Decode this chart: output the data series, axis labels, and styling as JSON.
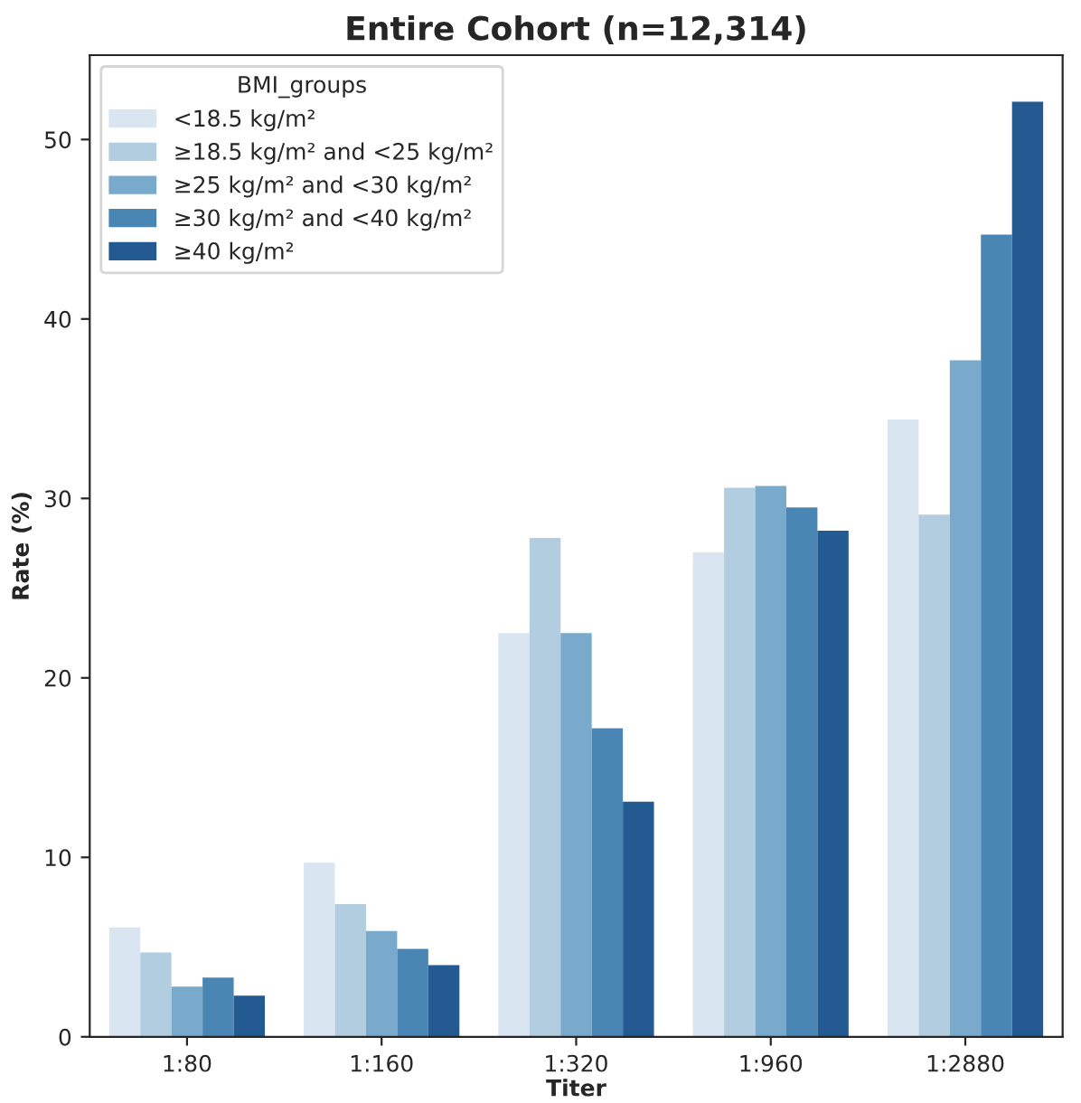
{
  "chart_data": {
    "type": "bar",
    "title": "Entire Cohort (n=12,314)",
    "xlabel": "Titer",
    "ylabel": "Rate (%)",
    "legend_title": "BMI_groups",
    "categories": [
      "1:80",
      "1:160",
      "1:320",
      "1:960",
      "1:2880"
    ],
    "series": [
      {
        "name": "<18.5 kg/m²",
        "color": "#d9e5f0",
        "values": [
          6.1,
          9.7,
          22.5,
          27.0,
          34.4
        ]
      },
      {
        "name": "≥18.5 kg/m² and <25 kg/m²",
        "color": "#b2cde0",
        "values": [
          4.7,
          7.4,
          27.8,
          30.6,
          29.1
        ]
      },
      {
        "name": "≥25 kg/m² and <30 kg/m²",
        "color": "#79aacb",
        "values": [
          2.8,
          5.9,
          22.5,
          30.7,
          37.7
        ]
      },
      {
        "name": "≥30 kg/m² and <40 kg/m²",
        "color": "#4a86b4",
        "values": [
          3.3,
          4.9,
          17.2,
          29.5,
          44.7
        ]
      },
      {
        "name": "≥40 kg/m²",
        "color": "#225a91",
        "values": [
          2.3,
          4.0,
          13.1,
          28.2,
          52.1
        ]
      }
    ],
    "ylim": [
      0,
      54.7
    ],
    "yticks": [
      0,
      10,
      20,
      30,
      40,
      50
    ],
    "legend": "top left",
    "grid": false
  }
}
